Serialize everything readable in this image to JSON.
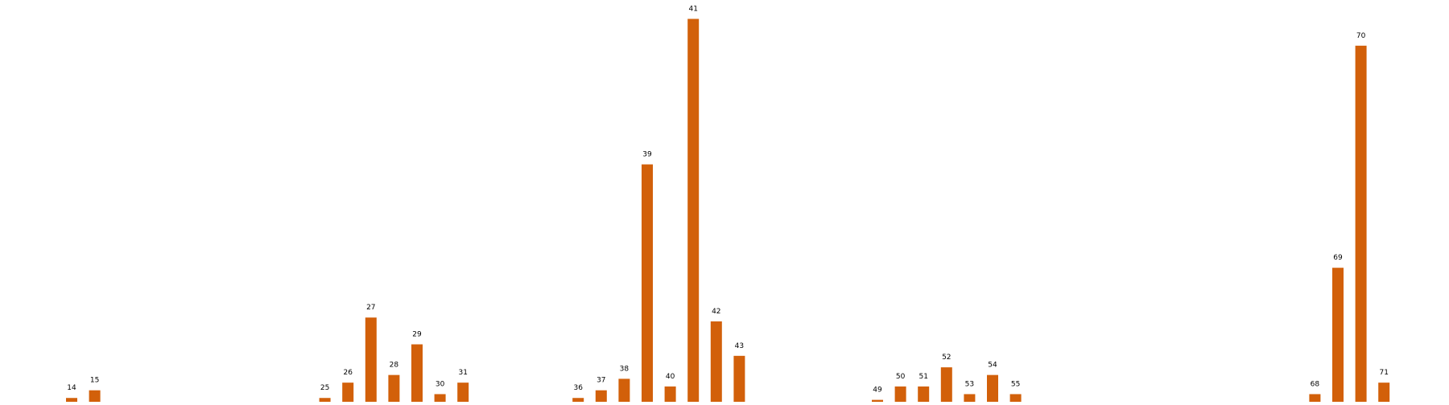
{
  "chart_data": {
    "type": "bar",
    "title": "",
    "xlabel": "",
    "ylabel": "",
    "grid": false,
    "legend": "none",
    "bar_color": "#d2600a",
    "x_range": [
      1,
      73
    ],
    "ylim": [
      0,
      100
    ],
    "x": [
      14,
      15,
      25,
      26,
      27,
      28,
      29,
      30,
      31,
      36,
      37,
      38,
      39,
      40,
      41,
      42,
      43,
      49,
      50,
      51,
      52,
      53,
      54,
      55,
      68,
      69,
      70,
      71
    ],
    "values": [
      1,
      3,
      1,
      5,
      22,
      7,
      15,
      2,
      5,
      1,
      3,
      6,
      62,
      4,
      100,
      21,
      12,
      0.5,
      4,
      4,
      9,
      2,
      7,
      2,
      2,
      35,
      93,
      5
    ],
    "labels": [
      "14",
      "15",
      "25",
      "26",
      "27",
      "28",
      "29",
      "30",
      "31",
      "36",
      "37",
      "38",
      "39",
      "40",
      "41",
      "42",
      "43",
      "49",
      "50",
      "51",
      "52",
      "53",
      "54",
      "55",
      "68",
      "69",
      "70",
      "71"
    ]
  }
}
